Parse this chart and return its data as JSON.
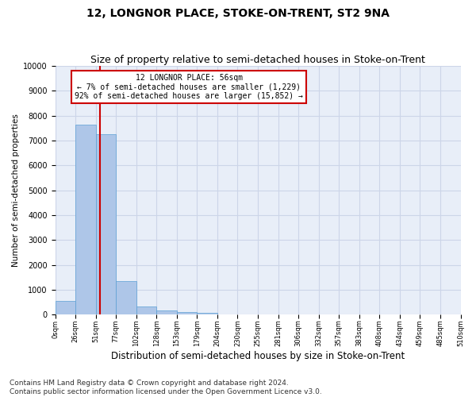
{
  "title": "12, LONGNOR PLACE, STOKE-ON-TRENT, ST2 9NA",
  "subtitle": "Size of property relative to semi-detached houses in Stoke-on-Trent",
  "xlabel": "Distribution of semi-detached houses by size in Stoke-on-Trent",
  "ylabel": "Number of semi-detached properties",
  "bar_values": [
    560,
    7630,
    7270,
    1360,
    320,
    160,
    110,
    80,
    0,
    0,
    0,
    0,
    0,
    0,
    0,
    0,
    0,
    0,
    0,
    0
  ],
  "bin_labels": [
    "0sqm",
    "26sqm",
    "51sqm",
    "77sqm",
    "102sqm",
    "128sqm",
    "153sqm",
    "179sqm",
    "204sqm",
    "230sqm",
    "255sqm",
    "281sqm",
    "306sqm",
    "332sqm",
    "357sqm",
    "383sqm",
    "408sqm",
    "434sqm",
    "459sqm",
    "485sqm",
    "510sqm"
  ],
  "bar_color": "#aec6e8",
  "bar_edge_color": "#5a9fd4",
  "property_size": 56,
  "bin_edges": [
    0,
    26,
    51,
    77,
    102,
    128,
    153,
    179,
    204,
    230,
    255,
    281,
    306,
    332,
    357,
    383,
    408,
    434,
    459,
    485,
    510
  ],
  "annotation_line1": "12 LONGNOR PLACE: 56sqm",
  "annotation_line2": "← 7% of semi-detached houses are smaller (1,229)",
  "annotation_line3": "92% of semi-detached houses are larger (15,852) →",
  "annotation_box_color": "#ffffff",
  "annotation_box_edge": "#cc0000",
  "grid_color": "#ccd5e8",
  "background_color": "#e8eef8",
  "ylim": [
    0,
    10000
  ],
  "yticks": [
    0,
    1000,
    2000,
    3000,
    4000,
    5000,
    6000,
    7000,
    8000,
    9000,
    10000
  ],
  "footer": "Contains HM Land Registry data © Crown copyright and database right 2024.\nContains public sector information licensed under the Open Government Licence v3.0.",
  "redline_color": "#cc0000",
  "title_fontsize": 10,
  "subtitle_fontsize": 9,
  "xlabel_fontsize": 8.5,
  "ylabel_fontsize": 7.5,
  "footer_fontsize": 6.5
}
